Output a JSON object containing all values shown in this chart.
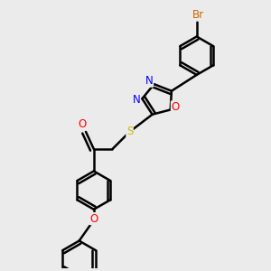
{
  "bg_color": "#ebebeb",
  "line_color": "#000000",
  "bond_width": 1.8,
  "atom_colors": {
    "Br": "#cc6600",
    "O": "#ff0000",
    "N": "#0000ff",
    "S": "#ccbb00",
    "C": "#000000"
  },
  "font_size_atom": 8.5,
  "xlim": [
    0,
    10
  ],
  "ylim": [
    0,
    10
  ]
}
